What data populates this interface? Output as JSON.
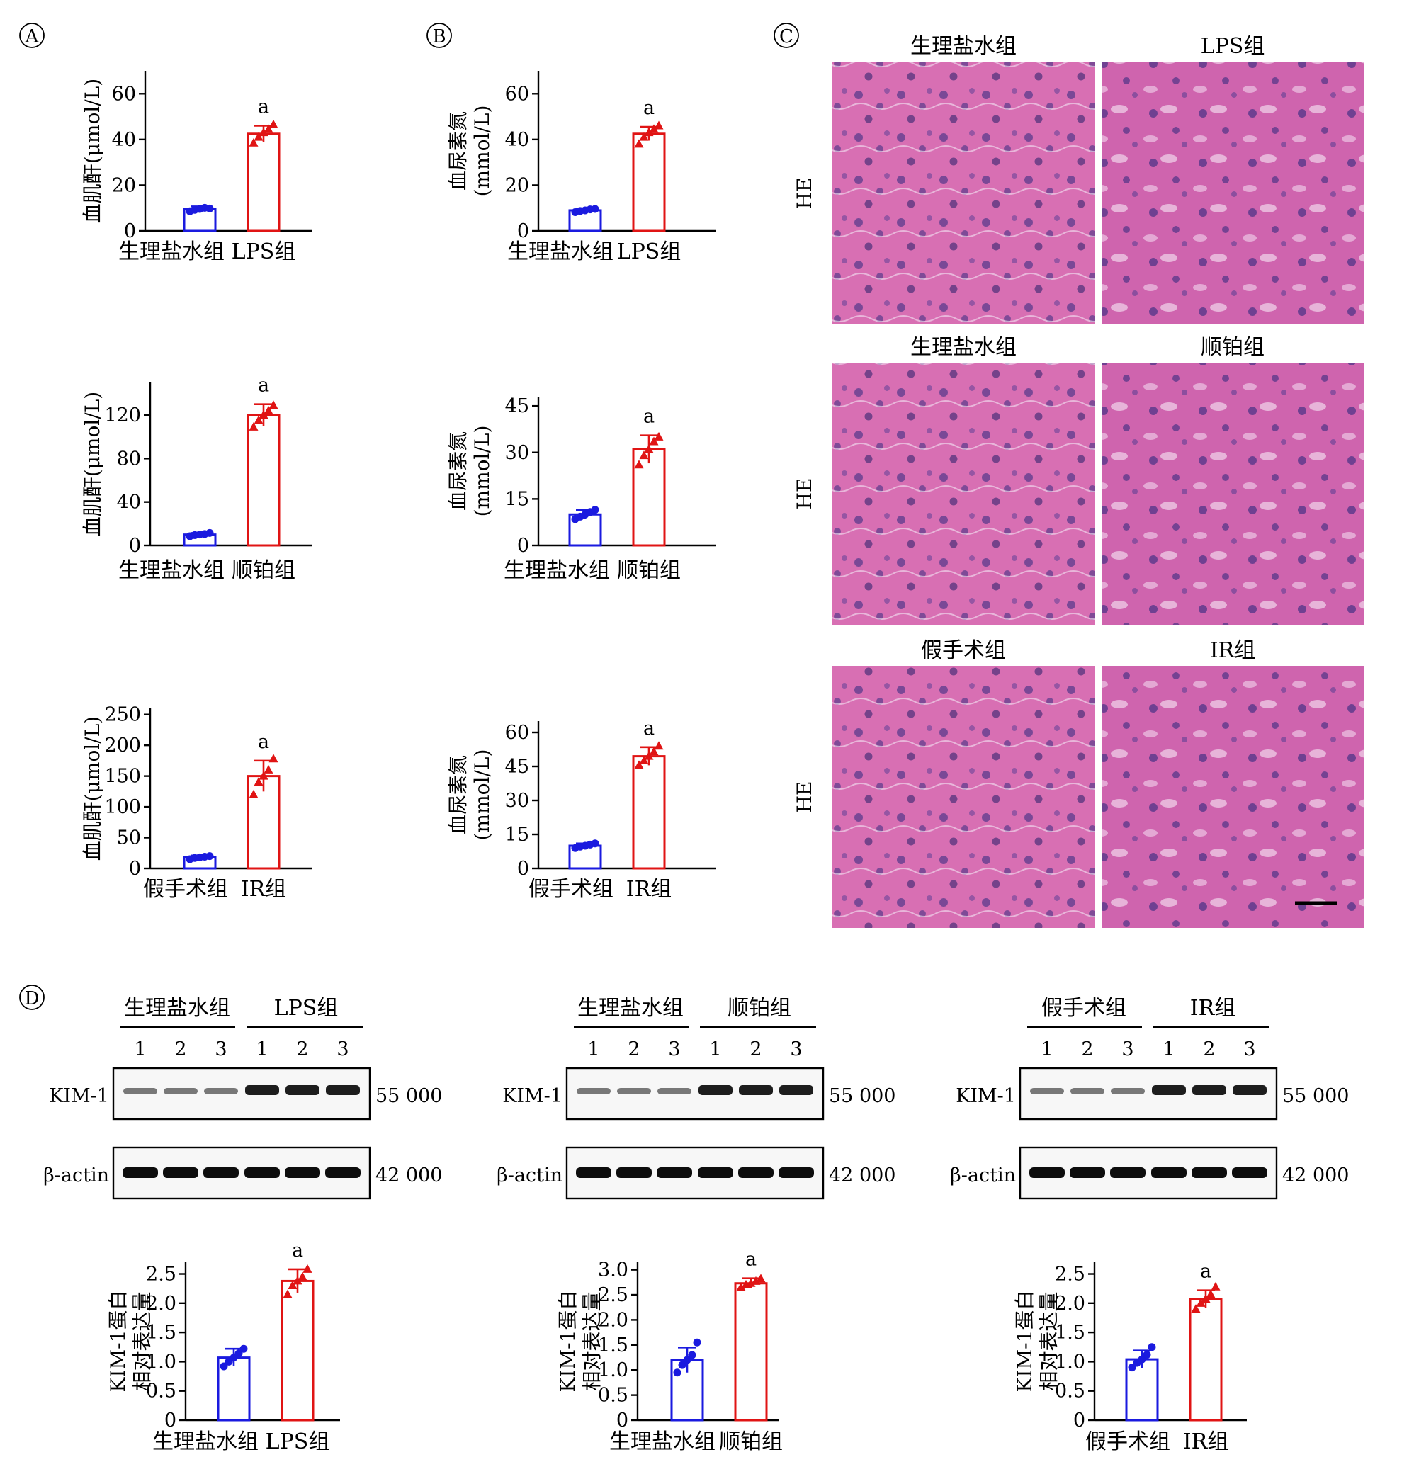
{
  "panels": {
    "A": "A",
    "B": "B",
    "C": "C",
    "D": "D"
  },
  "sig_mark": "a",
  "colors": {
    "control": "#1a1adf",
    "model": "#e01414"
  },
  "charts_creatinine": [
    {
      "type": "bar",
      "ylabel": "血肌酐(μmol/L)",
      "categories": [
        "生理盐水组",
        "LPS组"
      ],
      "values": [
        9.5,
        42.5
      ],
      "errors": [
        1.2,
        3.5
      ],
      "ylim": [
        0,
        70
      ],
      "yticks": [
        0,
        20,
        40,
        60
      ],
      "points": [
        [
          8.6,
          9.2,
          9.6,
          10.1,
          9.8
        ],
        [
          38.5,
          41.0,
          43.0,
          44.5,
          46.5
        ]
      ]
    },
    {
      "type": "bar",
      "ylabel": "血肌酐(μmol/L)",
      "categories": [
        "生理盐水组",
        "顺铂组"
      ],
      "values": [
        10.0,
        120.0
      ],
      "errors": [
        1.5,
        10.0
      ],
      "ylim": [
        0,
        150
      ],
      "yticks": [
        0,
        40,
        80,
        120
      ],
      "points": [
        [
          8.5,
          9.5,
          10.0,
          10.5,
          11.5
        ],
        [
          109.0,
          115.0,
          120.0,
          124.0,
          129.0
        ]
      ]
    },
    {
      "type": "bar",
      "ylabel": "血肌酐(μmol/L)",
      "categories": [
        "假手术组",
        "IR组"
      ],
      "values": [
        18.0,
        150.0
      ],
      "errors": [
        3.0,
        25.0
      ],
      "ylim": [
        0,
        260
      ],
      "yticks": [
        0,
        50,
        100,
        150,
        200,
        250
      ],
      "points": [
        [
          15.0,
          17.0,
          18.0,
          19.0,
          20.0
        ],
        [
          120.0,
          140.0,
          150.0,
          160.0,
          178.0
        ]
      ]
    }
  ],
  "charts_bun": [
    {
      "type": "bar",
      "ylabel_line1": "血尿素氮",
      "ylabel_line2": "(mmol/L)",
      "categories": [
        "生理盐水组",
        "LPS组"
      ],
      "values": [
        9.0,
        42.5
      ],
      "errors": [
        0.8,
        3.0
      ],
      "ylim": [
        0,
        70
      ],
      "yticks": [
        0,
        20,
        40,
        60
      ],
      "points": [
        [
          8.2,
          8.7,
          9.0,
          9.4,
          9.6
        ],
        [
          38.0,
          41.0,
          43.0,
          44.5,
          46.0
        ]
      ]
    },
    {
      "type": "bar",
      "ylabel_line1": "血尿素氮",
      "ylabel_line2": "(mmol/L)",
      "categories": [
        "生理盐水组",
        "顺铂组"
      ],
      "values": [
        10.0,
        31.0
      ],
      "errors": [
        1.5,
        4.5
      ],
      "ylim": [
        0,
        48
      ],
      "yticks": [
        0,
        15,
        30,
        45
      ],
      "points": [
        [
          8.5,
          9.3,
          10.0,
          10.8,
          11.5
        ],
        [
          26.0,
          29.0,
          31.0,
          33.5,
          35.0
        ]
      ]
    },
    {
      "type": "bar",
      "ylabel_line1": "血尿素氮",
      "ylabel_line2": "(mmol/L)",
      "categories": [
        "假手术组",
        "IR组"
      ],
      "values": [
        10.0,
        49.5
      ],
      "errors": [
        1.0,
        4.0
      ],
      "ylim": [
        0,
        65
      ],
      "yticks": [
        0,
        15,
        30,
        45,
        60
      ],
      "points": [
        [
          9.0,
          9.6,
          10.0,
          10.5,
          11.0
        ],
        [
          45.5,
          47.5,
          49.5,
          51.5,
          54.0
        ]
      ]
    }
  ],
  "he": {
    "side_label": "HE",
    "rows": [
      {
        "left": "生理盐水组",
        "right": "LPS组"
      },
      {
        "left": "生理盐水组",
        "right": "顺铂组"
      },
      {
        "left": "假手术组",
        "right": "IR组"
      }
    ]
  },
  "blots": [
    {
      "group1": "生理盐水组",
      "group2": "LPS组",
      "lanes": [
        "1",
        "2",
        "3",
        "1",
        "2",
        "3"
      ]
    },
    {
      "group1": "生理盐水组",
      "group2": "顺铂组",
      "lanes": [
        "1",
        "2",
        "3",
        "1",
        "2",
        "3"
      ]
    },
    {
      "group1": "假手术组",
      "group2": "IR组",
      "lanes": [
        "1",
        "2",
        "3",
        "1",
        "2",
        "3"
      ]
    }
  ],
  "blot_labels": {
    "kim1": "KIM-1",
    "actin": "β-actin",
    "kim1_mw": "55 000",
    "actin_mw": "42 000"
  },
  "charts_kim1": [
    {
      "type": "bar",
      "ylabel_line1": "KIM-1蛋白",
      "ylabel_line2": "相对表达量",
      "categories": [
        "生理盐水组",
        "LPS组"
      ],
      "values": [
        1.07,
        2.38
      ],
      "errors": [
        0.15,
        0.2
      ],
      "ylim": [
        0,
        2.7
      ],
      "yticks": [
        "0",
        "0.5",
        "1.0",
        "1.5",
        "2.0",
        "2.5"
      ],
      "points": [
        [
          0.92,
          1.0,
          1.07,
          1.14,
          1.22
        ],
        [
          2.15,
          2.3,
          2.38,
          2.45,
          2.58
        ]
      ]
    },
    {
      "type": "bar",
      "ylabel_line1": "KIM-1蛋白",
      "ylabel_line2": "相对表达量",
      "categories": [
        "生理盐水组",
        "顺铂组"
      ],
      "values": [
        1.2,
        2.73
      ],
      "errors": [
        0.25,
        0.1
      ],
      "ylim": [
        0,
        3.15
      ],
      "yticks": [
        "0",
        "0.5",
        "1.0",
        "1.5",
        "2.0",
        "2.5",
        "3.0"
      ],
      "points": [
        [
          0.95,
          1.1,
          1.2,
          1.3,
          1.55
        ],
        [
          2.65,
          2.7,
          2.73,
          2.77,
          2.82
        ]
      ]
    },
    {
      "type": "bar",
      "ylabel_line1": "KIM-1蛋白",
      "ylabel_line2": "相对表达量",
      "categories": [
        "假手术组",
        "IR组"
      ],
      "values": [
        1.04,
        2.07
      ],
      "errors": [
        0.15,
        0.15
      ],
      "ylim": [
        0,
        2.7
      ],
      "yticks": [
        "0",
        "0.5",
        "1.0",
        "1.5",
        "2.0",
        "2.5"
      ],
      "points": [
        [
          0.9,
          0.98,
          1.04,
          1.12,
          1.25
        ],
        [
          1.9,
          2.0,
          2.07,
          2.15,
          2.28
        ]
      ]
    }
  ]
}
